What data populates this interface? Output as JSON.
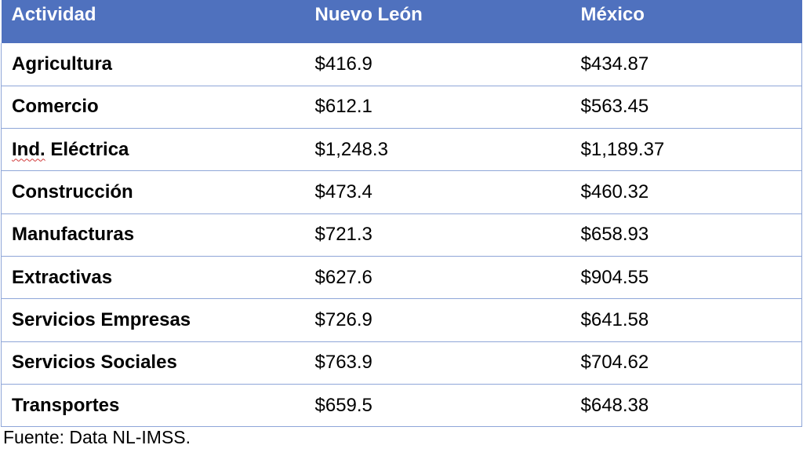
{
  "table": {
    "headers": [
      "Actividad",
      "Nuevo León",
      "México"
    ],
    "rows": [
      {
        "actividad": "Agricultura",
        "nuevo_leon": "$416.9",
        "mexico": "$434.87"
      },
      {
        "actividad": "Comercio",
        "nuevo_leon": "$612.1",
        "mexico": "$563.45"
      },
      {
        "actividad_prefix": "Ind.",
        "actividad_suffix": " Eléctrica",
        "nuevo_leon": "$1,248.3",
        "mexico": "$1,189.37"
      },
      {
        "actividad": "Construcción",
        "nuevo_leon": "$473.4",
        "mexico": "$460.32"
      },
      {
        "actividad": "Manufacturas",
        "nuevo_leon": "$721.3",
        "mexico": "$658.93"
      },
      {
        "actividad": "Extractivas",
        "nuevo_leon": "$627.6",
        "mexico": "$904.55"
      },
      {
        "actividad": "Servicios Empresas",
        "nuevo_leon": "$726.9",
        "mexico": "$641.58"
      },
      {
        "actividad": "Servicios Sociales",
        "nuevo_leon": "$763.9",
        "mexico": "$704.62"
      },
      {
        "actividad": "Transportes",
        "nuevo_leon": "$659.5",
        "mexico": "$648.38"
      }
    ]
  },
  "source_note": "Fuente: Data NL-IMSS.",
  "colors": {
    "header_background": "#4f71be",
    "header_text": "#ffffff",
    "grid_line": "#8fa6d8"
  }
}
